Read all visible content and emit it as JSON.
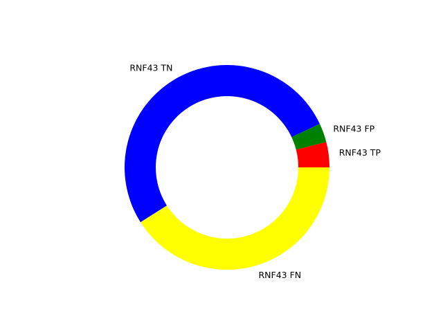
{
  "chart_data": {
    "type": "pie",
    "donut": true,
    "slices": [
      {
        "label": "RNF43 TP",
        "value": 4,
        "color": "#ff0000"
      },
      {
        "label": "RNF43 FP",
        "value": 3,
        "color": "#008000"
      },
      {
        "label": "RNF43 TN",
        "value": 52,
        "color": "#0000ff"
      },
      {
        "label": "RNF43 FN",
        "value": 41,
        "color": "#ffff00"
      }
    ],
    "start_angle_deg": 0,
    "direction": "counterclockwise",
    "legend": false
  }
}
